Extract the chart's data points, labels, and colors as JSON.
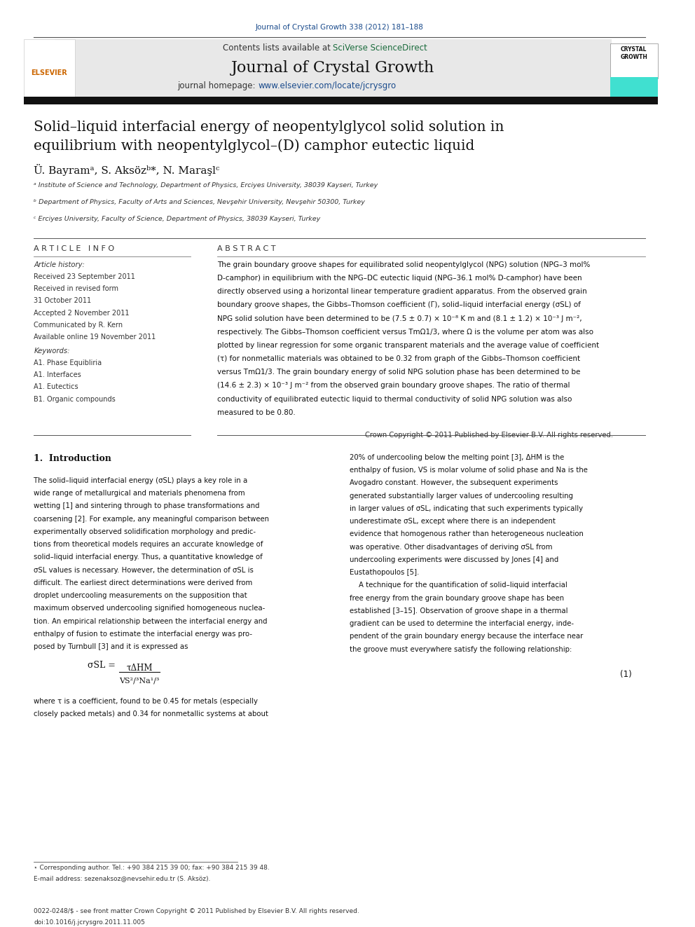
{
  "page_width": 9.92,
  "page_height": 13.23,
  "background_color": "#ffffff",
  "journal_ref": "Journal of Crystal Growth 338 (2012) 181–188",
  "journal_ref_color": "#1a4b8c",
  "header_bg": "#e8e8e8",
  "header_sciverse_color": "#1a6b3c",
  "header_url_color": "#1a4b8c",
  "article_info_header": "A R T I C L E   I N F O",
  "abstract_header": "A B S T R A C T",
  "article_history_label": "Article history:",
  "received1": "Received 23 September 2011",
  "received2": "Received in revised form",
  "received2b": "31 October 2011",
  "accepted": "Accepted 2 November 2011",
  "communicated": "Communicated by R. Kern",
  "available": "Available online 19 November 2011",
  "keywords_label": "Keywords:",
  "keywords": [
    "A1. Phase Equibliria",
    "A1. Interfaces",
    "A1. Eutectics",
    "B1. Organic compounds"
  ],
  "affil_a": "ᵃ Institute of Science and Technology, Department of Physics, Erciyes University, 38039 Kayseri, Turkey",
  "affil_b": "ᵇ Department of Physics, Faculty of Arts and Sciences, Nevşehir University, Nevşehir 50300, Turkey",
  "affil_c": "ᶜ Erciyes University, Faculty of Science, Department of Physics, 38039 Kayseri, Turkey",
  "abstract_text": "The grain boundary groove shapes for equilibrated solid neopentylglycol (NPG) solution (NPG–3 mol%\nD-camphor) in equilibrium with the NPG–DC eutectic liquid (NPG–36.1 mol% D-camphor) have been\ndirectly observed using a horizontal linear temperature gradient apparatus. From the observed grain\nboundary groove shapes, the Gibbs–Thomson coefficient (Γ), solid–liquid interfacial energy (σSL) of\nNPG solid solution have been determined to be (7.5 ± 0.7) × 10⁻⁸ K m and (8.1 ± 1.2) × 10⁻³ J m⁻²,\nrespectively. The Gibbs–Thomson coefficient versus TmΩ1/3, where Ω is the volume per atom was also\nplotted by linear regression for some organic transparent materials and the average value of coefficient\n(τ) for nonmetallic materials was obtained to be 0.32 from graph of the Gibbs–Thomson coefficient\nversus TmΩ1/3. The grain boundary energy of solid NPG solution phase has been determined to be\n(14.6 ± 2.3) × 10⁻³ J m⁻² from the observed grain boundary groove shapes. The ratio of thermal\nconductivity of equilibrated eutectic liquid to thermal conductivity of solid NPG solution was also\nmeasured to be 0.80.",
  "copyright": "Crown Copyright © 2011 Published by Elsevier B.V. All rights reserved.",
  "intro_col1": "The solid–liquid interfacial energy (σSL) plays a key role in a\nwide range of metallurgical and materials phenomena from\nwetting [1] and sintering through to phase transformations and\ncoarsening [2]. For example, any meaningful comparison between\nexperimentally observed solidification morphology and predic-\ntions from theoretical models requires an accurate knowledge of\nsolid–liquid interfacial energy. Thus, a quantitative knowledge of\nσSL values is necessary. However, the determination of σSL is\ndifficult. The earliest direct determinations were derived from\ndroplet undercooling measurements on the supposition that\nmaximum observed undercooling signified homogeneous nuclea-\ntion. An empirical relationship between the interfacial energy and\nenthalpy of fusion to estimate the interfacial energy was pro-\nposed by Turnbull [3] and it is expressed as",
  "intro_col2": "20% of undercooling below the melting point [3], ΔHM is the\nenthalpy of fusion, VS is molar volume of solid phase and Na is the\nAvogadro constant. However, the subsequent experiments\ngenerated substantially larger values of undercooling resulting\nin larger values of σSL, indicating that such experiments typically\nunderestimate σSL, except where there is an independent\nevidence that homogenous rather than heterogeneous nucleation\nwas operative. Other disadvantages of deriving σSL from\nundercooling experiments were discussed by Jones [4] and\nEustathopoulos [5].\n    A technique for the quantification of solid–liquid interfacial\nfree energy from the grain boundary groove shape has been\nestablished [3–15]. Observation of groove shape in a thermal\ngradient can be used to determine the interfacial energy, inde-\npendent of the grain boundary energy because the interface near\nthe groove must everywhere satisfy the following relationship:",
  "eq1_note": "where τ is a coefficient, found to be 0.45 for metals (especially\nclosely packed metals) and 0.34 for nonmetallic systems at about",
  "footer_note": "⋆ Corresponding author. Tel.: +90 384 215 39 00; fax: +90 384 215 39 48.",
  "footer_email": "E-mail address: sezenaksoz@nevsehir.edu.tr (S. Aksöz).",
  "footer_issn": "0022-0248/$ - see front matter Crown Copyright © 2011 Published by Elsevier B.V. All rights reserved.",
  "footer_doi": "doi:10.1016/j.jcrysgro.2011.11.005"
}
